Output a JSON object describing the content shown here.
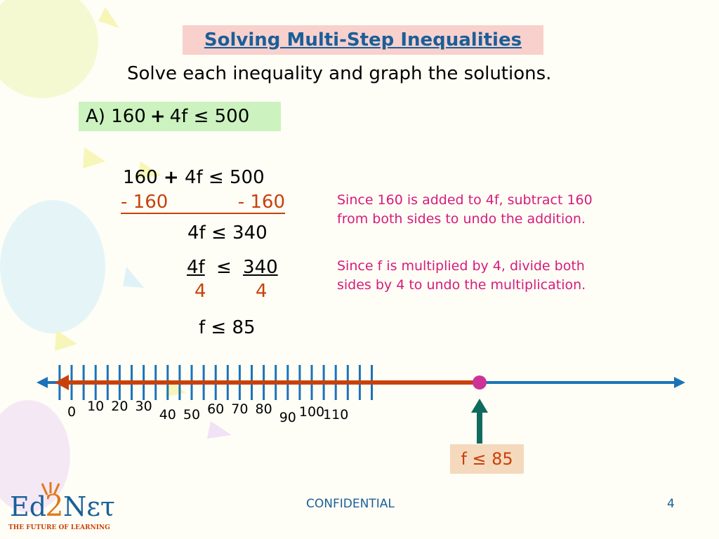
{
  "title": "Solving Multi-Step Inequalities",
  "instruction": "Solve each inequality and graph the solutions.",
  "problem": {
    "prefix": "A) 160",
    "op": "+",
    "suffix": "4f ≤ 500"
  },
  "steps": {
    "line1_left": "160",
    "line1_op": "+",
    "line1_right": "4f ≤  500",
    "line2_left": " - 160",
    "line2_right": "- 160",
    "line3": "4f ≤  340",
    "line4_num_left": "4f",
    "line4_rel": "≤",
    "line4_num_right": "340",
    "line5_den_left": "4",
    "line5_den_right": "4",
    "line6": "f ≤  85"
  },
  "notes": {
    "note1_line1": "Since 160 is added to 4f, subtract 160",
    "note1_line2": "from both sides to undo the addition.",
    "note2_line1": "Since f is multiplied by 4, divide both",
    "note2_line2": "sides by 4 to undo the multiplication."
  },
  "number_line": {
    "tick_labels": [
      "0",
      "10",
      "20",
      "30",
      "40",
      "50",
      "60",
      "70",
      "80",
      "90",
      "100",
      "110"
    ],
    "solution_point": 85,
    "colors": {
      "axis": "#1a73b8",
      "solution": "#c8410b",
      "point": "#cc3399",
      "arrow": "#0f6b5c"
    }
  },
  "answer": "f ≤  85",
  "footer": {
    "center": "CONFIDENTIAL",
    "page": "4"
  },
  "logo": {
    "brand": "Ed2Nετ",
    "tagline": "THE FUTURE OF LEARNING"
  }
}
